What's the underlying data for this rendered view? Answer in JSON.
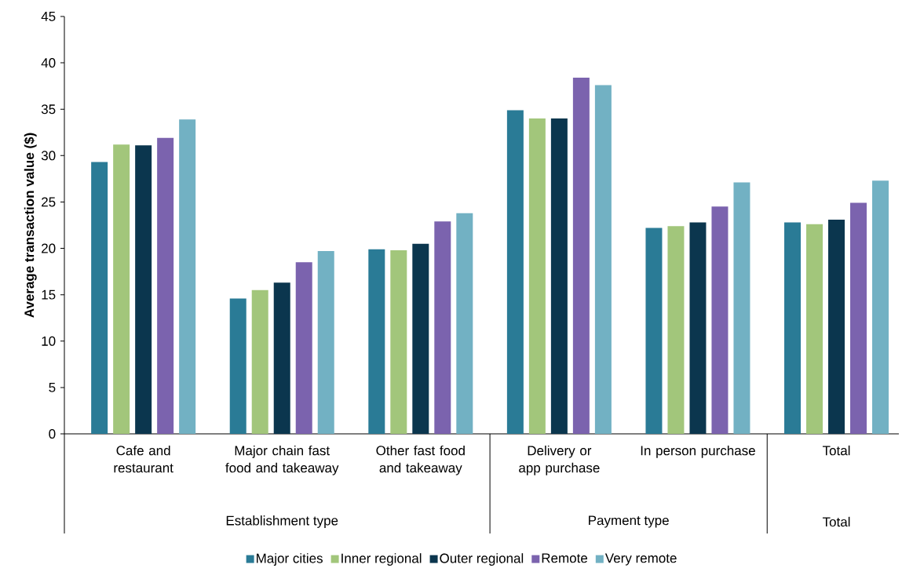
{
  "chart_data": {
    "type": "bar",
    "ylabel": "Average transaction value ($)",
    "categories": [
      "Cafe and restaurant",
      "Major chain fast food and takeaway",
      "Other fast food and takeaway",
      "Delivery or app purchase",
      "In person purchase",
      "Total"
    ],
    "series": [
      {
        "name": "Major cities",
        "color": "#2a7b96",
        "values": [
          29.3,
          14.6,
          19.9,
          34.9,
          22.2,
          22.8
        ]
      },
      {
        "name": "Inner regional",
        "color": "#a2c67b",
        "values": [
          31.2,
          15.5,
          19.8,
          34.0,
          22.4,
          22.6
        ]
      },
      {
        "name": "Outer regional",
        "color": "#0b364e",
        "values": [
          31.1,
          16.3,
          20.5,
          34.0,
          22.8,
          23.1
        ]
      },
      {
        "name": "Remote",
        "color": "#7b63ae",
        "values": [
          31.9,
          18.5,
          22.9,
          38.4,
          24.5,
          24.9
        ]
      },
      {
        "name": "Very remote",
        "color": "#72b1c3",
        "values": [
          33.9,
          19.7,
          23.8,
          37.6,
          27.1,
          27.3
        ]
      }
    ],
    "ylim": [
      0,
      45
    ],
    "yticks": [
      0,
      5,
      10,
      15,
      20,
      25,
      30,
      35,
      40,
      45
    ],
    "annotations": [
      "Establishment type",
      "Payment type",
      "Total"
    ],
    "grid": false,
    "legend": "bottom"
  }
}
